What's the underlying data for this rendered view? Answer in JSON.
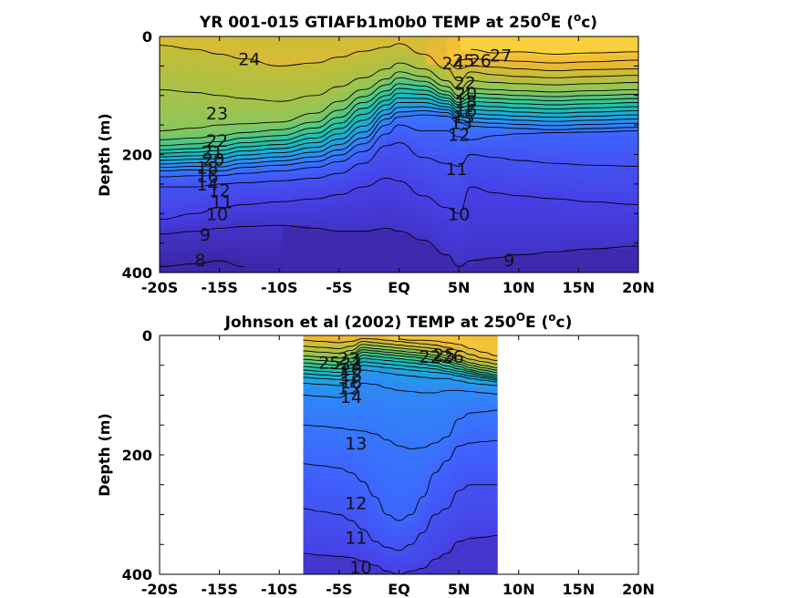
{
  "chart_data": [
    {
      "type": "contour",
      "title": {
        "pre": "YR 001-015 GTIAFb1m0b0 TEMP at 250",
        "sup1": "O",
        "mid": "E (",
        "sup2": "o",
        "post": "c)"
      },
      "ylabel": "Depth (m)",
      "xlim": [
        -20,
        20
      ],
      "ylim": [
        400,
        0
      ],
      "x_ticks": [
        -20,
        -15,
        -10,
        -5,
        0,
        5,
        10,
        15,
        20
      ],
      "x_tick_labels": [
        "-20S",
        "-15S",
        "-10S",
        "-5S",
        "EQ",
        "5N",
        "10N",
        "15N",
        "20N"
      ],
      "y_ticks": [
        0,
        200,
        400
      ],
      "y_tick_labels": [
        "0",
        "200",
        "400"
      ],
      "data_extent": [
        -20,
        20
      ],
      "contour_levels": [
        8,
        9,
        10,
        11,
        12,
        13,
        14,
        15,
        16,
        17,
        18,
        19,
        20,
        21,
        22,
        23,
        24,
        25,
        26,
        27
      ],
      "isotherm_depths": {
        "x": [
          -20,
          -17,
          -15,
          -13,
          -10,
          -7,
          -5,
          -3,
          -1,
          0,
          2,
          4,
          5,
          6,
          8,
          10,
          13,
          16,
          20
        ],
        "27": [
          null,
          null,
          null,
          null,
          null,
          null,
          null,
          null,
          null,
          null,
          null,
          null,
          null,
          22,
          28,
          26,
          30,
          28,
          26
        ],
        "26": [
          null,
          null,
          null,
          null,
          null,
          null,
          null,
          null,
          null,
          null,
          null,
          null,
          40,
          38,
          40,
          42,
          45,
          43,
          40
        ],
        "25": [
          null,
          null,
          null,
          null,
          null,
          null,
          null,
          null,
          null,
          null,
          null,
          45,
          55,
          50,
          52,
          55,
          58,
          56,
          55
        ],
        "24": [
          15,
          22,
          30,
          38,
          50,
          45,
          35,
          25,
          18,
          12,
          30,
          55,
          75,
          60,
          65,
          68,
          70,
          68,
          66
        ],
        "23": [
          90,
          95,
          100,
          105,
          110,
          100,
          85,
          70,
          55,
          45,
          55,
          75,
          90,
          75,
          78,
          80,
          82,
          80,
          78
        ],
        "22": [
          160,
          155,
          150,
          148,
          145,
          130,
          110,
          90,
          72,
          60,
          68,
          85,
          100,
          88,
          90,
          92,
          94,
          92,
          90
        ],
        "21": [
          175,
          172,
          168,
          163,
          158,
          145,
          125,
          102,
          82,
          70,
          76,
          93,
          106,
          96,
          98,
          100,
          102,
          100,
          98
        ],
        "20": [
          185,
          182,
          178,
          172,
          168,
          155,
          137,
          112,
          92,
          80,
          84,
          99,
          112,
          103,
          105,
          107,
          109,
          107,
          105
        ],
        "19": [
          192,
          190,
          186,
          180,
          176,
          164,
          147,
          122,
          100,
          88,
          91,
          104,
          116,
          110,
          112,
          114,
          116,
          114,
          112
        ],
        "18": [
          198,
          196,
          193,
          187,
          183,
          172,
          156,
          132,
          108,
          96,
          98,
          109,
          121,
          117,
          119,
          121,
          123,
          121,
          119
        ],
        "17": [
          204,
          202,
          200,
          194,
          190,
          180,
          165,
          142,
          116,
          104,
          105,
          114,
          126,
          124,
          126,
          128,
          130,
          128,
          126
        ],
        "16": [
          210,
          208,
          207,
          201,
          197,
          188,
          174,
          152,
          124,
          112,
          112,
          119,
          131,
          131,
          133,
          135,
          137,
          135,
          133
        ],
        "15": [
          216,
          214,
          214,
          208,
          204,
          196,
          183,
          162,
          132,
          120,
          119,
          124,
          136,
          138,
          140,
          142,
          144,
          142,
          140
        ],
        "14": [
          222,
          220,
          221,
          215,
          211,
          204,
          192,
          172,
          140,
          128,
          126,
          129,
          141,
          145,
          147,
          149,
          151,
          149,
          147
        ],
        "13": [
          228,
          226,
          228,
          222,
          218,
          212,
          201,
          182,
          150,
          136,
          133,
          135,
          146,
          152,
          154,
          156,
          158,
          156,
          154
        ],
        "12": [
          238,
          236,
          236,
          232,
          228,
          222,
          212,
          195,
          165,
          150,
          160,
          160,
          170,
          175,
          168,
          165,
          163,
          162,
          160
        ],
        "11": [
          255,
          255,
          250,
          248,
          245,
          240,
          232,
          215,
          185,
          180,
          205,
          215,
          220,
          200,
          205,
          210,
          215,
          218,
          220
        ],
        "10": [
          310,
          300,
          290,
          285,
          280,
          275,
          268,
          255,
          240,
          245,
          270,
          290,
          300,
          255,
          265,
          270,
          275,
          280,
          285
        ],
        "9": [
          335,
          330,
          325,
          322,
          320,
          325,
          330,
          330,
          325,
          330,
          345,
          370,
          390,
          380,
          375,
          370,
          365,
          360,
          355
        ],
        "8": [
          390,
          385,
          380,
          390,
          null,
          null,
          null,
          null,
          null,
          null,
          null,
          null,
          null,
          null,
          null,
          null,
          null,
          null,
          null
        ]
      },
      "contour_labels": [
        {
          "text": "24",
          "x": -12.5,
          "y": 38
        },
        {
          "text": "23",
          "x": -15.2,
          "y": 130
        },
        {
          "text": "22",
          "x": -15.2,
          "y": 176
        },
        {
          "text": "21",
          "x": -15.6,
          "y": 195
        },
        {
          "text": "20",
          "x": -15.5,
          "y": 208
        },
        {
          "text": "18",
          "x": -16.0,
          "y": 222
        },
        {
          "text": "16",
          "x": -16.0,
          "y": 236
        },
        {
          "text": "14",
          "x": -16.0,
          "y": 250
        },
        {
          "text": "12",
          "x": -15.0,
          "y": 260
        },
        {
          "text": "11",
          "x": -14.8,
          "y": 280
        },
        {
          "text": "10",
          "x": -15.2,
          "y": 300
        },
        {
          "text": "9",
          "x": -16.2,
          "y": 335
        },
        {
          "text": "8",
          "x": -16.6,
          "y": 378
        },
        {
          "text": "24",
          "x": 4.5,
          "y": 45
        },
        {
          "text": "25",
          "x": 5.4,
          "y": 40
        },
        {
          "text": "26",
          "x": 6.8,
          "y": 40
        },
        {
          "text": "27",
          "x": 8.5,
          "y": 32
        },
        {
          "text": "22",
          "x": 5.5,
          "y": 78
        },
        {
          "text": "20",
          "x": 5.6,
          "y": 96
        },
        {
          "text": "18",
          "x": 5.6,
          "y": 110
        },
        {
          "text": "16",
          "x": 5.6,
          "y": 124
        },
        {
          "text": "15",
          "x": 5.4,
          "y": 136
        },
        {
          "text": "13",
          "x": 5.2,
          "y": 146
        },
        {
          "text": "12",
          "x": 5.0,
          "y": 166
        },
        {
          "text": "11",
          "x": 4.8,
          "y": 224
        },
        {
          "text": "10",
          "x": 5.0,
          "y": 300
        },
        {
          "text": "9",
          "x": 9.2,
          "y": 378
        }
      ]
    },
    {
      "type": "contour",
      "title": {
        "pre": "Johnson et al (2002) TEMP at 250",
        "sup1": "O",
        "mid": "E (",
        "sup2": "o",
        "post": "c)"
      },
      "ylabel": "Depth (m)",
      "xlim": [
        -20,
        20
      ],
      "ylim": [
        400,
        0
      ],
      "x_ticks": [
        -20,
        -15,
        -10,
        -5,
        0,
        5,
        10,
        15,
        20
      ],
      "x_tick_labels": [
        "-20S",
        "-15S",
        "-10S",
        "-5S",
        "EQ",
        "5N",
        "10N",
        "15N",
        "20N"
      ],
      "y_ticks": [
        0,
        200,
        400
      ],
      "y_tick_labels": [
        "0",
        "200",
        "400"
      ],
      "data_extent": [
        -8,
        8.2
      ],
      "contour_levels": [
        10,
        11,
        12,
        13,
        14,
        15,
        16,
        17,
        18,
        19,
        20,
        21,
        22,
        23,
        24,
        25,
        26
      ],
      "isotherm_depths": {
        "x": [
          -8,
          -6.5,
          -5,
          -4,
          -3,
          -2,
          -1,
          0,
          1,
          2,
          3,
          4,
          5,
          6,
          7,
          8.2
        ],
        "26": [
          null,
          null,
          null,
          null,
          null,
          null,
          null,
          6,
          8,
          8,
          9,
          12,
          15,
          22,
          28,
          34
        ],
        "25": [
          8,
          10,
          12,
          10,
          5,
          6,
          8,
          10,
          12,
          14,
          16,
          20,
          25,
          32,
          38,
          42
        ],
        "24": [
          18,
          20,
          22,
          18,
          10,
          12,
          14,
          16,
          18,
          20,
          22,
          28,
          34,
          40,
          44,
          48
        ],
        "23": [
          26,
          28,
          30,
          25,
          15,
          17,
          19,
          21,
          23,
          25,
          28,
          34,
          40,
          46,
          50,
          54
        ],
        "22": [
          34,
          36,
          38,
          32,
          20,
          22,
          24,
          26,
          28,
          30,
          33,
          38,
          44,
          50,
          54,
          58
        ],
        "21": [
          40,
          42,
          44,
          38,
          24,
          26,
          28,
          30,
          32,
          34,
          37,
          42,
          48,
          54,
          58,
          62
        ],
        "20": [
          46,
          48,
          50,
          44,
          28,
          30,
          32,
          34,
          36,
          38,
          41,
          46,
          52,
          58,
          62,
          66
        ],
        "19": [
          52,
          54,
          56,
          50,
          33,
          35,
          37,
          39,
          41,
          43,
          46,
          51,
          56,
          61,
          65,
          69
        ],
        "18": [
          58,
          60,
          62,
          55,
          38,
          40,
          42,
          44,
          46,
          48,
          51,
          56,
          60,
          64,
          68,
          72
        ],
        "17": [
          64,
          66,
          68,
          60,
          44,
          46,
          48,
          50,
          52,
          54,
          56,
          60,
          64,
          68,
          71,
          75
        ],
        "16": [
          70,
          72,
          74,
          65,
          50,
          52,
          54,
          56,
          58,
          60,
          62,
          64,
          68,
          72,
          75,
          78
        ],
        "15": [
          80,
          82,
          84,
          75,
          58,
          60,
          63,
          66,
          68,
          70,
          72,
          72,
          76,
          80,
          82,
          84
        ],
        "14": [
          100,
          102,
          104,
          96,
          80,
          82,
          88,
          92,
          94,
          96,
          96,
          92,
          92,
          94,
          96,
          98
        ],
        "13": [
          150,
          152,
          155,
          158,
          160,
          165,
          175,
          185,
          190,
          188,
          180,
          170,
          140,
          130,
          128,
          125
        ],
        "12": [
          215,
          218,
          222,
          230,
          245,
          270,
          300,
          310,
          300,
          270,
          230,
          210,
          185,
          180,
          178,
          176
        ],
        "11": [
          290,
          295,
          300,
          310,
          325,
          345,
          355,
          360,
          350,
          330,
          300,
          290,
          260,
          250,
          250,
          250
        ],
        "10": [
          365,
          368,
          370,
          372,
          378,
          385,
          395,
          400,
          395,
          390,
          375,
          365,
          345,
          340,
          338,
          335
        ]
      },
      "contour_labels": [
        {
          "text": "25",
          "x": -5.8,
          "y": 45
        },
        {
          "text": "23",
          "x": -4.2,
          "y": 38
        },
        {
          "text": "22",
          "x": -4.0,
          "y": 46
        },
        {
          "text": "20",
          "x": -4.0,
          "y": 56
        },
        {
          "text": "18",
          "x": -4.0,
          "y": 66
        },
        {
          "text": "16",
          "x": -4.0,
          "y": 78
        },
        {
          "text": "15",
          "x": -4.2,
          "y": 88
        },
        {
          "text": "14",
          "x": -4.0,
          "y": 102
        },
        {
          "text": "22",
          "x": 2.6,
          "y": 35
        },
        {
          "text": "25",
          "x": 3.8,
          "y": 32
        },
        {
          "text": "26",
          "x": 4.5,
          "y": 35
        },
        {
          "text": "13",
          "x": -3.6,
          "y": 180
        },
        {
          "text": "12",
          "x": -3.6,
          "y": 280
        },
        {
          "text": "11",
          "x": -3.6,
          "y": 338
        },
        {
          "text": "10",
          "x": -3.2,
          "y": 388
        }
      ]
    }
  ],
  "colors": {
    "stops": [
      "#3e26a8",
      "#4740e6",
      "#3f65fe",
      "#2f88f6",
      "#1da9dc",
      "#1abeb5",
      "#45c78a",
      "#8cc65a",
      "#c5bd36",
      "#f0b935",
      "#fad23b"
    ],
    "temp_min": 8,
    "temp_max": 28
  }
}
